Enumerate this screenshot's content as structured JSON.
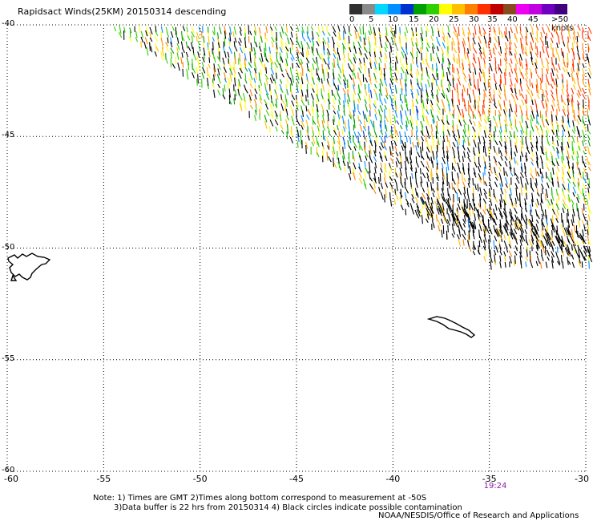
{
  "title": "Rapidsact Winds(25KM) 20150314 descending",
  "legend": {
    "colors": [
      "#303030",
      "#8a8a8a",
      "#00d8ff",
      "#0090ff",
      "#0030d0",
      "#00a000",
      "#30d000",
      "#ffff00",
      "#ffc000",
      "#ff8000",
      "#ff3000",
      "#c00000",
      "#8a4a20",
      "#f000f0",
      "#c000e0",
      "#7000c0",
      "#400080"
    ],
    "labels": [
      "0",
      "5",
      "10",
      "15",
      "20",
      "25",
      "30",
      "35",
      "40",
      "45",
      ">50 knots"
    ]
  },
  "map": {
    "lon_range": [
      -60,
      -30
    ],
    "lat_range": [
      -60,
      -40
    ],
    "lat_labels": [
      "-40",
      "-45",
      "-50",
      "-55",
      "-60"
    ],
    "lon_labels": [
      "-60",
      "-55",
      "-50",
      "-45",
      "-40",
      "-35",
      "-30"
    ],
    "time_label": "19:24",
    "land": [
      "Falkland Islands",
      "South Georgia"
    ]
  },
  "notes": {
    "line1": "Note: 1) Times are GMT 2)Times along bottom correspond to measurement at -50S",
    "line2": "3)Data buffer is 22 hrs from 20150314 4) Black circles indicate possible contamination",
    "credit": "NOAA/NESDIS/Office of Research and Applications"
  }
}
